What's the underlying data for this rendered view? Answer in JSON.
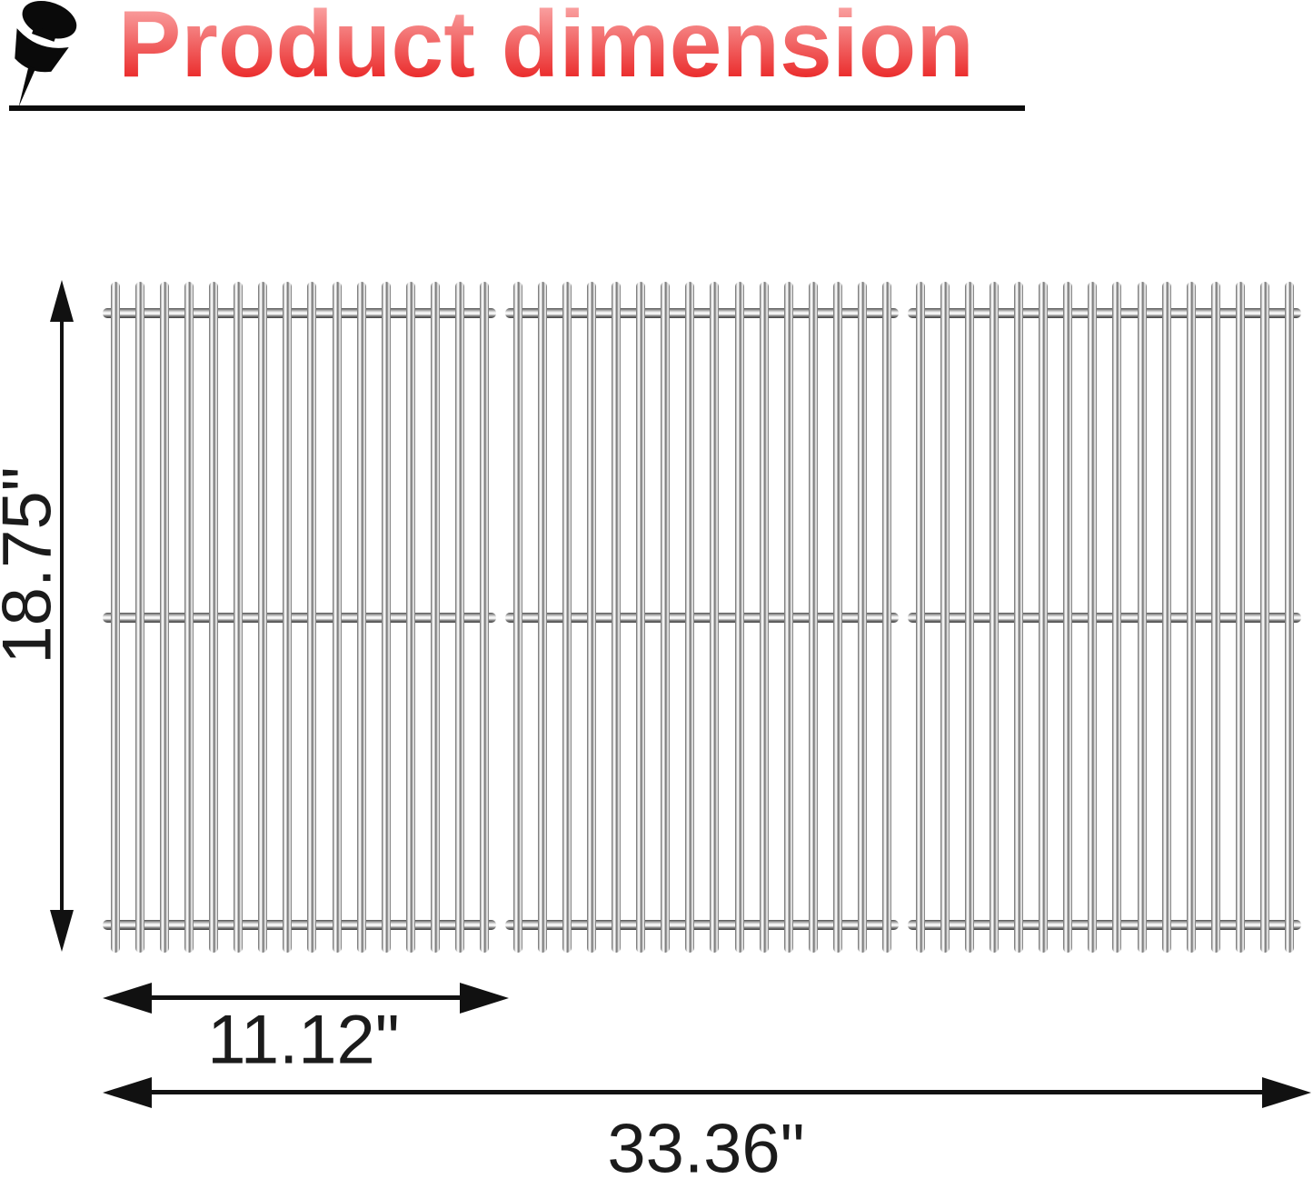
{
  "title": {
    "text": "Product dimension",
    "icon": "pushpin-icon"
  },
  "dimensions": {
    "height_label": "18.75\"",
    "panel_width_label": "11.12\"",
    "total_width_label": "33.36\""
  },
  "grate": {
    "panel_count": 3,
    "rods_per_panel": 16,
    "crossbars_per_panel": 3
  },
  "colors": {
    "title_red_light": "#fbb0b0",
    "title_red_dark": "#e91f1f",
    "annotation_black": "#111111",
    "steel_light": "#ffffff",
    "steel_dark": "#5e5e5e"
  }
}
